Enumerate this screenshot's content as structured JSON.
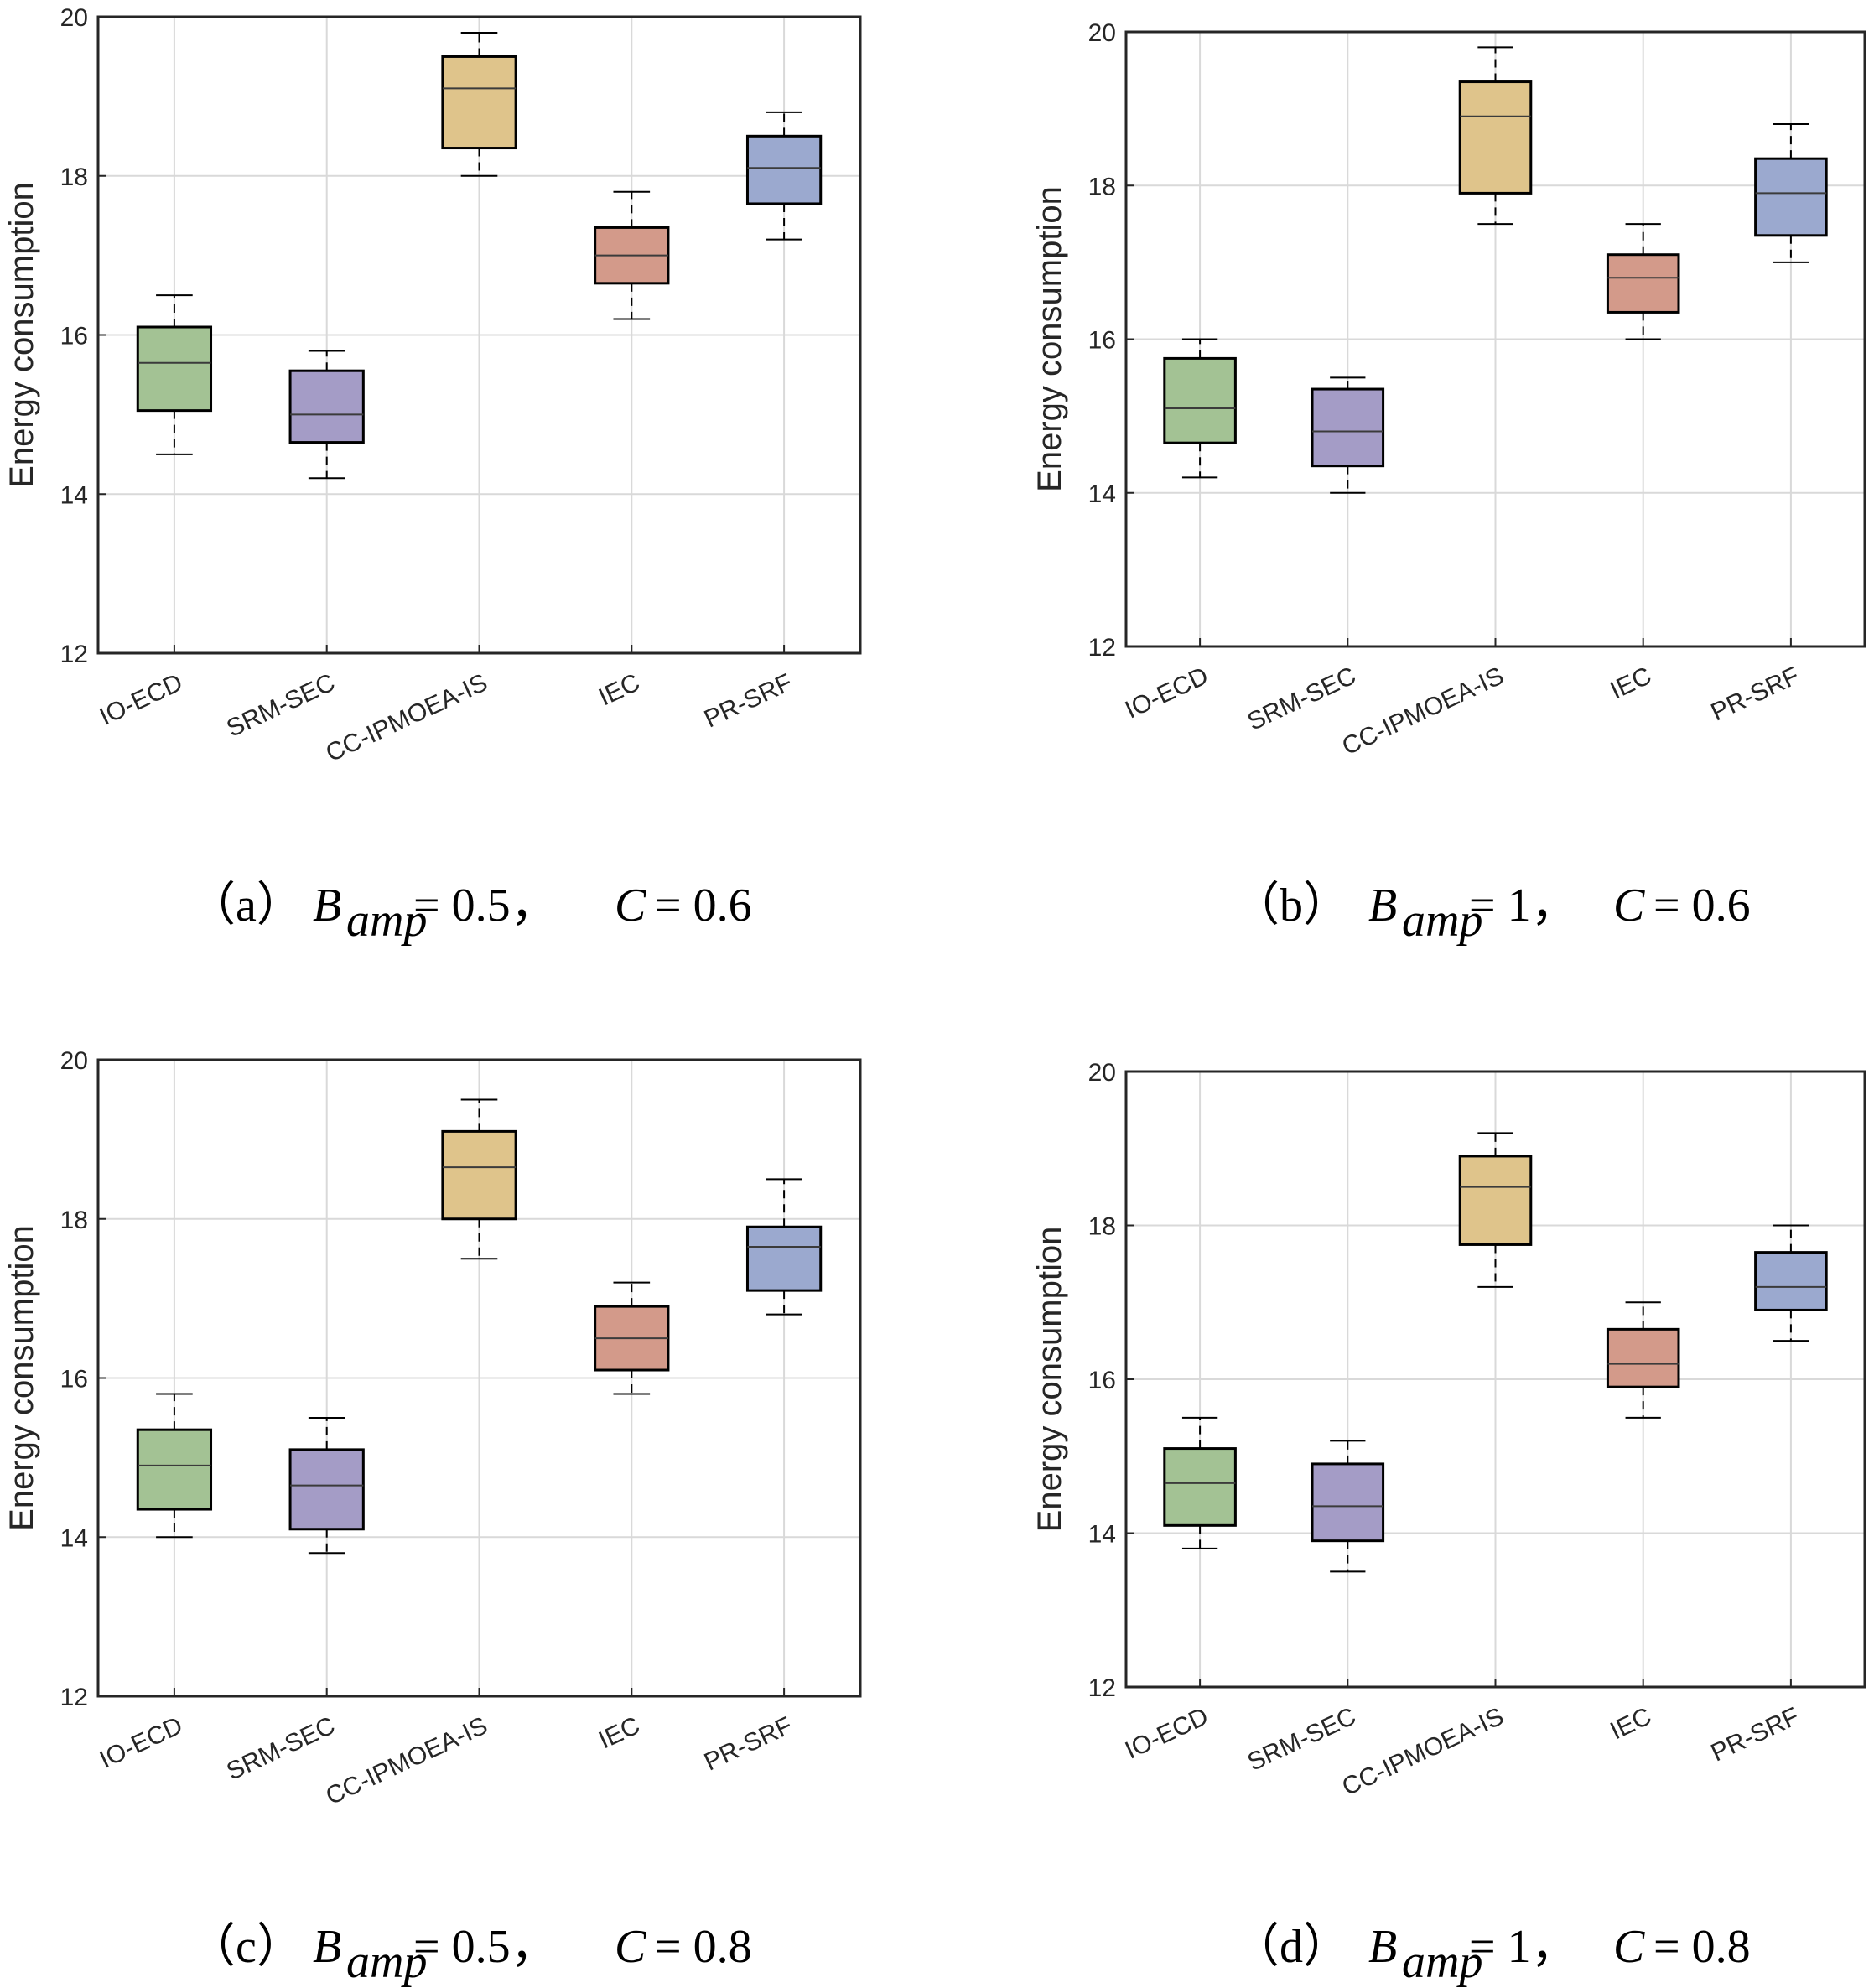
{
  "chart_data": [
    {
      "type": "boxplot",
      "panel": "(a)",
      "caption": {
        "label": "（a）",
        "var": "B",
        "sub": "amp",
        "eq": "= 0.5，",
        "c_var": "C",
        "c_eq": "= 0.6"
      },
      "ylabel": "Energy consumption",
      "ylim": [
        12,
        20
      ],
      "yticks": [
        "12",
        "14",
        "16",
        "18",
        "20"
      ],
      "grid": true,
      "categories": [
        "IO-ECD",
        "SRM-SEC",
        "CC-IPMOEA-IS",
        "IEC",
        "PR-SRF"
      ],
      "boxes": [
        {
          "min": 14.5,
          "q1": 15.05,
          "median": 15.65,
          "q3": 16.1,
          "max": 16.5
        },
        {
          "min": 14.2,
          "q1": 14.65,
          "median": 15.0,
          "q3": 15.55,
          "max": 15.8
        },
        {
          "min": 18.0,
          "q1": 18.35,
          "median": 19.1,
          "q3": 19.5,
          "max": 19.8
        },
        {
          "min": 16.2,
          "q1": 16.65,
          "median": 17.0,
          "q3": 17.35,
          "max": 17.8
        },
        {
          "min": 17.2,
          "q1": 17.65,
          "median": 18.1,
          "q3": 18.5,
          "max": 18.8
        }
      ]
    },
    {
      "type": "boxplot",
      "panel": "(b)",
      "caption": {
        "label": "（b）",
        "var": "B",
        "sub": "amp",
        "eq": "= 1，",
        "c_var": "C",
        "c_eq": "= 0.6"
      },
      "ylabel": "Energy consumption",
      "ylim": [
        12,
        20
      ],
      "yticks": [
        "12",
        "14",
        "16",
        "18",
        "20"
      ],
      "grid": true,
      "categories": [
        "IO-ECD",
        "SRM-SEC",
        "CC-IPMOEA-IS",
        "IEC",
        "PR-SRF"
      ],
      "boxes": [
        {
          "min": 14.2,
          "q1": 14.65,
          "median": 15.1,
          "q3": 15.75,
          "max": 16.0
        },
        {
          "min": 14.0,
          "q1": 14.35,
          "median": 14.8,
          "q3": 15.35,
          "max": 15.5
        },
        {
          "min": 17.5,
          "q1": 17.9,
          "median": 18.9,
          "q3": 19.35,
          "max": 19.8
        },
        {
          "min": 16.0,
          "q1": 16.35,
          "median": 16.8,
          "q3": 17.1,
          "max": 17.5
        },
        {
          "min": 17.0,
          "q1": 17.35,
          "median": 17.9,
          "q3": 18.35,
          "max": 18.8
        }
      ]
    },
    {
      "type": "boxplot",
      "panel": "(c)",
      "caption": {
        "label": "（c）",
        "var": "B",
        "sub": "amp",
        "eq": "= 0.5，",
        "c_var": "C",
        "c_eq": "= 0.8"
      },
      "ylabel": "Energy consumption",
      "ylim": [
        12,
        20
      ],
      "yticks": [
        "12",
        "14",
        "16",
        "18",
        "20"
      ],
      "grid": true,
      "categories": [
        "IO-ECD",
        "SRM-SEC",
        "CC-IPMOEA-IS",
        "IEC",
        "PR-SRF"
      ],
      "boxes": [
        {
          "min": 14.0,
          "q1": 14.35,
          "median": 14.9,
          "q3": 15.35,
          "max": 15.8
        },
        {
          "min": 13.8,
          "q1": 14.1,
          "median": 14.65,
          "q3": 15.1,
          "max": 15.5
        },
        {
          "min": 17.5,
          "q1": 18.0,
          "median": 18.65,
          "q3": 19.1,
          "max": 19.5
        },
        {
          "min": 15.8,
          "q1": 16.1,
          "median": 16.5,
          "q3": 16.9,
          "max": 17.2
        },
        {
          "min": 16.8,
          "q1": 17.1,
          "median": 17.65,
          "q3": 17.9,
          "max": 18.5
        }
      ]
    },
    {
      "type": "boxplot",
      "panel": "(d)",
      "caption": {
        "label": "（d）",
        "var": "B",
        "sub": "amp",
        "eq": "= 1，",
        "c_var": "C",
        "c_eq": "= 0.8"
      },
      "ylabel": "Energy consumption",
      "ylim": [
        12,
        20
      ],
      "yticks": [
        "12",
        "14",
        "16",
        "18",
        "20"
      ],
      "grid": true,
      "categories": [
        "IO-ECD",
        "SRM-SEC",
        "CC-IPMOEA-IS",
        "IEC",
        "PR-SRF"
      ],
      "boxes": [
        {
          "min": 13.8,
          "q1": 14.1,
          "median": 14.65,
          "q3": 15.1,
          "max": 15.5
        },
        {
          "min": 13.5,
          "q1": 13.9,
          "median": 14.35,
          "q3": 14.9,
          "max": 15.2
        },
        {
          "min": 17.2,
          "q1": 17.75,
          "median": 18.5,
          "q3": 18.9,
          "max": 19.2
        },
        {
          "min": 15.5,
          "q1": 15.9,
          "median": 16.2,
          "q3": 16.65,
          "max": 17.0
        },
        {
          "min": 16.5,
          "q1": 16.9,
          "median": 17.2,
          "q3": 17.65,
          "max": 18.0
        }
      ]
    }
  ],
  "colors": {
    "fills": [
      "#a3c294",
      "#a49cc6",
      "#dfc48b",
      "#d39a8a",
      "#9ba9cf"
    ],
    "box_stroke": "#000000",
    "grid": "#d9d9d9",
    "axis": "#262626"
  }
}
